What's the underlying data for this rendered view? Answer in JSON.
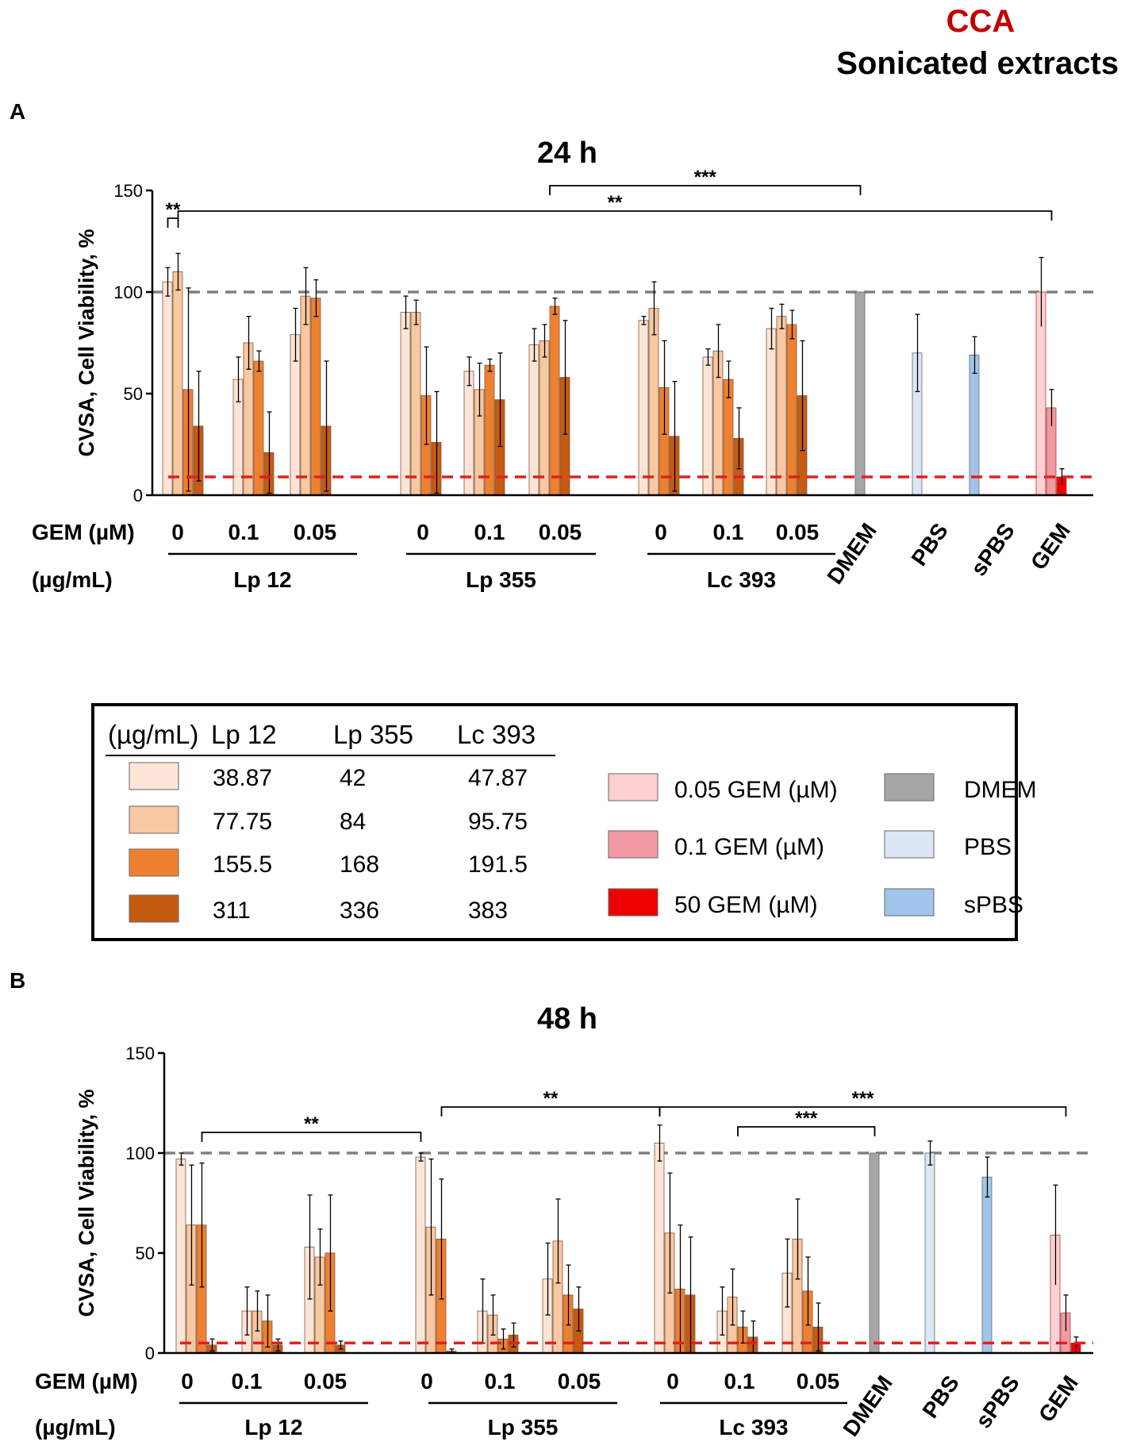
{
  "header": {
    "line1": "CCA",
    "line1_color": "#c00000",
    "line2": "Sonicated extracts"
  },
  "colors": {
    "c1": "#fce4d6",
    "c2": "#f8c8a3",
    "c3": "#ee8130",
    "c4": "#c55a11",
    "gem005": "#fdd0d4",
    "gem01": "#f19aa3",
    "gem50": "#ee0000",
    "dmem": "#a6a6a6",
    "pbs": "#dce6f4",
    "spbs": "#a1c5ea",
    "ref_line_gray": "#808080",
    "ref_line_red": "#e02020"
  },
  "legend": {
    "header": [
      "(µg/mL)",
      "Lp 12",
      "Lp 355",
      "Lc 393"
    ],
    "rows": [
      [
        "38.87",
        "42",
        "47.87"
      ],
      [
        "77.75",
        "84",
        "95.75"
      ],
      [
        "155.5",
        "168",
        "191.5"
      ],
      [
        "311",
        "336",
        "383"
      ]
    ],
    "gem_items": [
      "0.05 GEM (µM)",
      "0.1 GEM (µM)",
      "50 GEM (µM)"
    ],
    "control_items": [
      "DMEM",
      "PBS",
      "sPBS"
    ]
  },
  "chart_data": [
    {
      "type": "bar",
      "panel": "A",
      "title": "24 h",
      "ylabel": "CVSA, Cell Viability, %",
      "ylim": [
        0,
        150
      ],
      "yticks": [
        "0",
        "50",
        "100",
        "150"
      ],
      "reference_lines": [
        100,
        9
      ],
      "gem_label": "GEM (µM)",
      "conc_label": "(µg/mL)",
      "gem_levels": [
        "0",
        "0.1",
        "0.05"
      ],
      "extracts": [
        "Lp 12",
        "Lp 355",
        "Lc 393"
      ],
      "controls": [
        "DMEM",
        "PBS",
        "sPBS",
        "GEM"
      ],
      "groups": {
        "Lp 12": [
          [
            105,
            110,
            52,
            34
          ],
          [
            57,
            75,
            66,
            21
          ],
          [
            79,
            98,
            97,
            34
          ]
        ],
        "Lp 355": [
          [
            90,
            90,
            49,
            26
          ],
          [
            61,
            52,
            64,
            47
          ],
          [
            74,
            76,
            93,
            58
          ]
        ],
        "Lc 393": [
          [
            86,
            92,
            53,
            29
          ],
          [
            68,
            71,
            57,
            28
          ],
          [
            82,
            88,
            84,
            49
          ]
        ]
      },
      "errors": {
        "Lp 12": [
          [
            7,
            9,
            50,
            27
          ],
          [
            11,
            13,
            5,
            20
          ],
          [
            13,
            14,
            9,
            32
          ]
        ],
        "Lp 355": [
          [
            8,
            6,
            24,
            25
          ],
          [
            7,
            13,
            3,
            23
          ],
          [
            8,
            8,
            4,
            28
          ]
        ],
        "Lc 393": [
          [
            2,
            13,
            23,
            27
          ],
          [
            4,
            13,
            9,
            15
          ],
          [
            10,
            6,
            7,
            27
          ]
        ]
      },
      "control_values": {
        "DMEM": 100,
        "PBS": 70,
        "sPBS": 69
      },
      "control_errors": {
        "DMEM": 0,
        "PBS": 19,
        "sPBS": 9
      },
      "gem_values": [
        100,
        43,
        9
      ],
      "gem_errors": [
        17,
        9,
        4
      ],
      "significance": [
        {
          "label": "**",
          "from": "Lp 12 0 c1",
          "to": "Lp 12 0 c2"
        },
        {
          "label": "***",
          "from": "Lp 355 0.05",
          "to": "DMEM"
        },
        {
          "label": "**",
          "from": "Lp 12 0 c2",
          "to": "GEM"
        }
      ]
    },
    {
      "type": "bar",
      "panel": "B",
      "title": "48 h",
      "ylabel": "CVSA, Cell Viability, %",
      "ylim": [
        0,
        150
      ],
      "yticks": [
        "0",
        "50",
        "100",
        "150"
      ],
      "reference_lines": [
        100,
        5
      ],
      "gem_label": "GEM (µM)",
      "conc_label": "(µg/mL)",
      "gem_levels": [
        "0",
        "0.1",
        "0.05"
      ],
      "extracts": [
        "Lp 12",
        "Lp 355",
        "Lc 393"
      ],
      "controls": [
        "DMEM",
        "PBS",
        "sPBS",
        "GEM"
      ],
      "groups": {
        "Lp 12": [
          [
            97,
            64,
            64,
            4
          ],
          [
            21,
            21,
            16,
            4
          ],
          [
            53,
            48,
            50,
            4
          ]
        ],
        "Lp 355": [
          [
            98,
            63,
            57,
            1
          ],
          [
            21,
            19,
            7,
            9
          ],
          [
            37,
            56,
            29,
            22
          ]
        ],
        "Lc 393": [
          [
            105,
            60,
            32,
            29
          ],
          [
            21,
            28,
            13,
            8
          ],
          [
            40,
            57,
            31,
            13
          ]
        ]
      },
      "errors": {
        "Lp 12": [
          [
            3,
            30,
            31,
            3
          ],
          [
            12,
            10,
            13,
            3
          ],
          [
            26,
            14,
            29,
            2
          ]
        ],
        "Lp 355": [
          [
            2,
            34,
            30,
            1
          ],
          [
            16,
            10,
            5,
            6
          ],
          [
            18,
            21,
            15,
            11
          ]
        ],
        "Lc 393": [
          [
            9,
            30,
            32,
            29
          ],
          [
            12,
            14,
            8,
            8
          ],
          [
            17,
            20,
            17,
            12
          ]
        ]
      },
      "control_values": {
        "DMEM": 100,
        "PBS": 100,
        "sPBS": 88
      },
      "control_errors": {
        "DMEM": 0,
        "PBS": 6,
        "sPBS": 10
      },
      "gem_values": [
        59,
        20,
        5
      ],
      "gem_errors": [
        25,
        9,
        3
      ],
      "significance": [
        {
          "label": "**",
          "from": "Lp 12 0 c3",
          "to": "Lp 355 0 c1"
        },
        {
          "label": "**",
          "from": "Lp 355 0 c3",
          "to": "Lc 393 0 c1"
        },
        {
          "label": "***",
          "from": "Lc 393 0 c1",
          "to": "GEM"
        },
        {
          "label": "***",
          "from": "Lc 393 0.1",
          "to": "DMEM"
        }
      ]
    }
  ]
}
